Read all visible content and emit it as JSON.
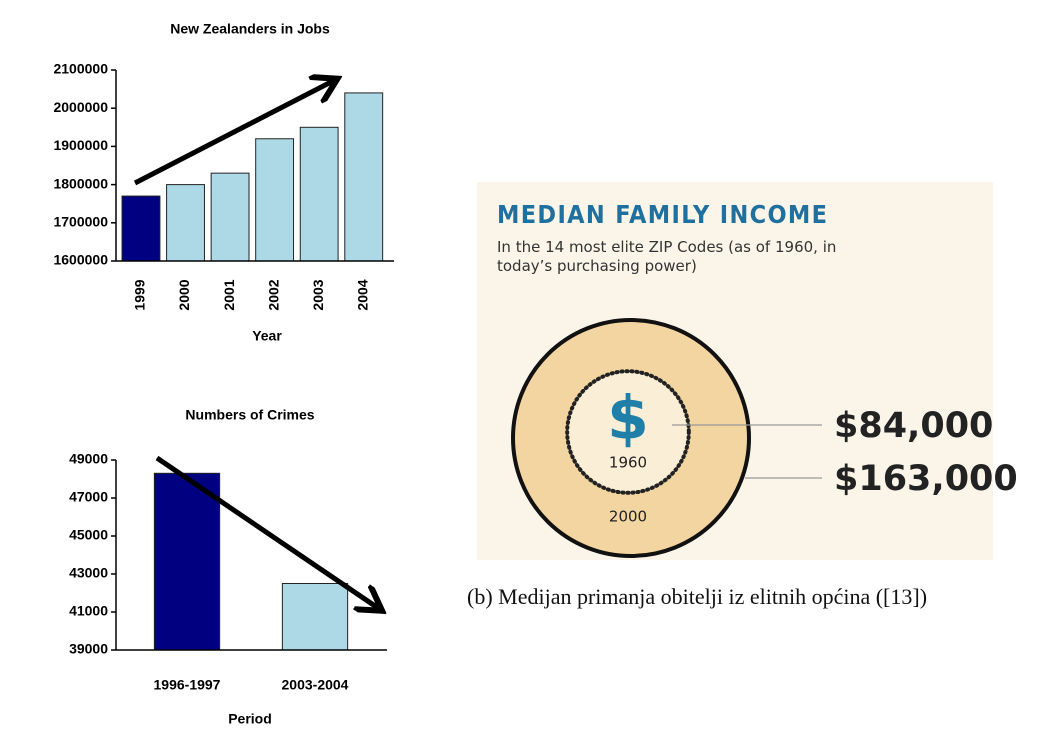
{
  "chart_data": [
    {
      "type": "bar",
      "title": "New Zealanders in Jobs",
      "xlabel": "Year",
      "categories": [
        "1999",
        "2000",
        "2001",
        "2002",
        "2003",
        "2004"
      ],
      "values": [
        1770000,
        1800000,
        1830000,
        1920000,
        1950000,
        2040000
      ],
      "colors": [
        "#000080",
        "#add8e6",
        "#add8e6",
        "#add8e6",
        "#add8e6",
        "#add8e6"
      ],
      "ylim": [
        1600000,
        2100000
      ],
      "yticks": [
        1600000,
        1700000,
        1800000,
        1900000,
        2000000,
        2100000
      ]
    },
    {
      "type": "bar",
      "title": "Numbers of Crimes",
      "xlabel": "Period",
      "categories": [
        "1996-1997",
        "2003-2004"
      ],
      "values": [
        48300,
        42500
      ],
      "colors": [
        "#000080",
        "#add8e6"
      ],
      "ylim": [
        39000,
        49000
      ],
      "yticks": [
        39000,
        41000,
        43000,
        45000,
        47000,
        49000
      ]
    },
    {
      "type": "proportional_circle",
      "title": "MEDIAN FAMILY INCOME",
      "subtitle": "In the 14 most elite ZIP Codes (as of 1960, in today’s purchasing power)",
      "symbol": "$",
      "categories": [
        "1960",
        "2000"
      ],
      "values": [
        84000,
        163000
      ],
      "value_labels": [
        "$84,000",
        "$163,000"
      ],
      "colors": [
        "#fbeed7",
        "#f2d5a0"
      ]
    }
  ],
  "caption": "(b) Medijan primanja obitelji iz elitnih općina ([13])"
}
